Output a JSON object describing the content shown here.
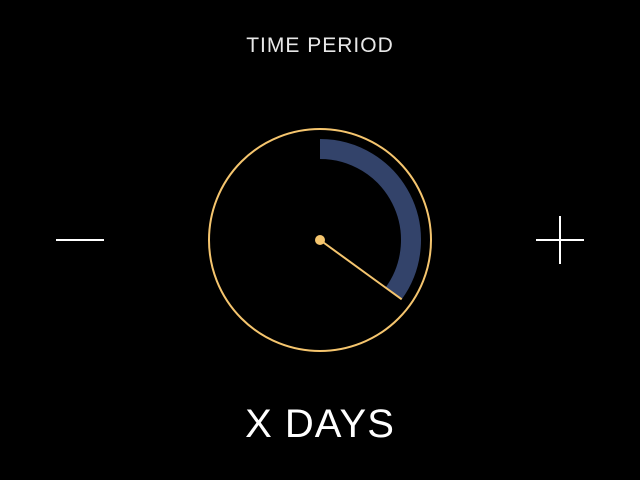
{
  "screen": {
    "title": "TIME PERIOD",
    "value_label": "X DAYS"
  },
  "controls": {
    "decrement_icon": "minus-icon",
    "increment_icon": "plus-icon"
  },
  "dial": {
    "fill_fraction": 0.35,
    "colors": {
      "ring": "#f5c56e",
      "progress": "#33436a",
      "hand": "#f5c56e",
      "background": "#000000"
    }
  }
}
